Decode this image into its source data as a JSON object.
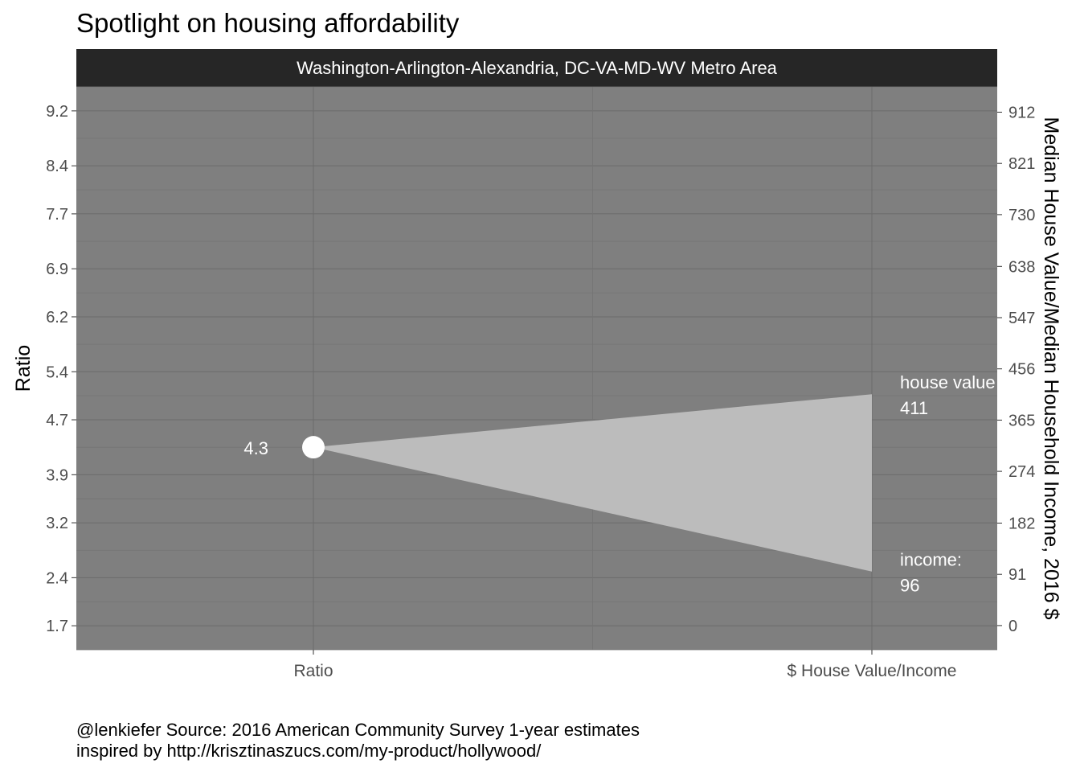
{
  "title": "Spotlight on housing affordability",
  "caption": {
    "line1": "@lenkiefer Source: 2016 American Community Survey 1-year estimates",
    "line2": "inspired by http://krisztinaszucs.com/my-product/hollywood/"
  },
  "colors": {
    "panel_bg": "#7f7f7f",
    "strip_bg": "#262626",
    "wedge": "#c0c0c0",
    "point": "#ffffff",
    "text_on_panel": "#ffffff"
  },
  "chart_data": {
    "type": "slope",
    "facet": "Washington-Arlington-Alexandria, DC-VA-MD-WV Metro Area",
    "categories": [
      "Ratio",
      "$ House Value/Income"
    ],
    "ylabel_left": "Ratio",
    "ylabel_right": "Median House Value/Median Household Income, 2016 $",
    "left_axis": {
      "ticks": [
        1.7,
        2.4,
        3.2,
        3.9,
        4.7,
        5.4,
        6.2,
        6.9,
        7.7,
        8.4,
        9.2
      ],
      "range": [
        1.35,
        9.55
      ]
    },
    "right_axis": {
      "ticks": [
        0,
        91,
        182,
        274,
        365,
        456,
        547,
        638,
        730,
        821,
        912
      ],
      "range": [
        -43,
        957
      ]
    },
    "ratio": {
      "value": 4.3,
      "label": "4.3"
    },
    "house_value": {
      "value": 411,
      "label_name": "house value",
      "label_value": "411"
    },
    "income": {
      "value": 96,
      "label_name": "income:",
      "label_value": "96"
    },
    "grid": true,
    "legend": "none"
  }
}
